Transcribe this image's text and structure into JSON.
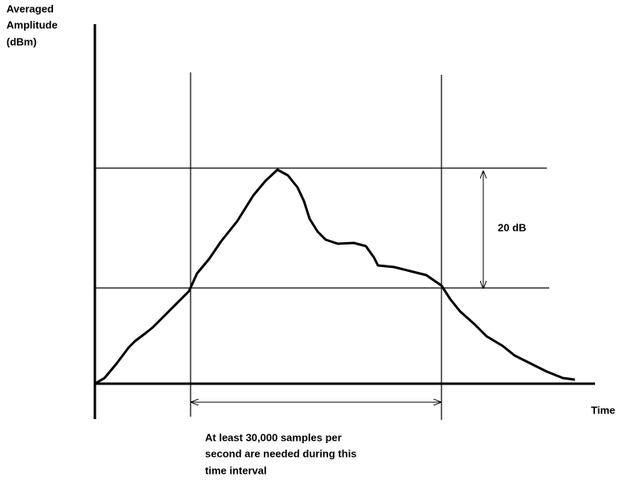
{
  "y_axis_label": [
    "Averaged",
    "Amplitude",
    "(dBm)"
  ],
  "x_axis_label": "Time",
  "span_label": "20 dB",
  "note": [
    "At least 30,000 samples per",
    "second are needed during this",
    "time interval"
  ]
}
